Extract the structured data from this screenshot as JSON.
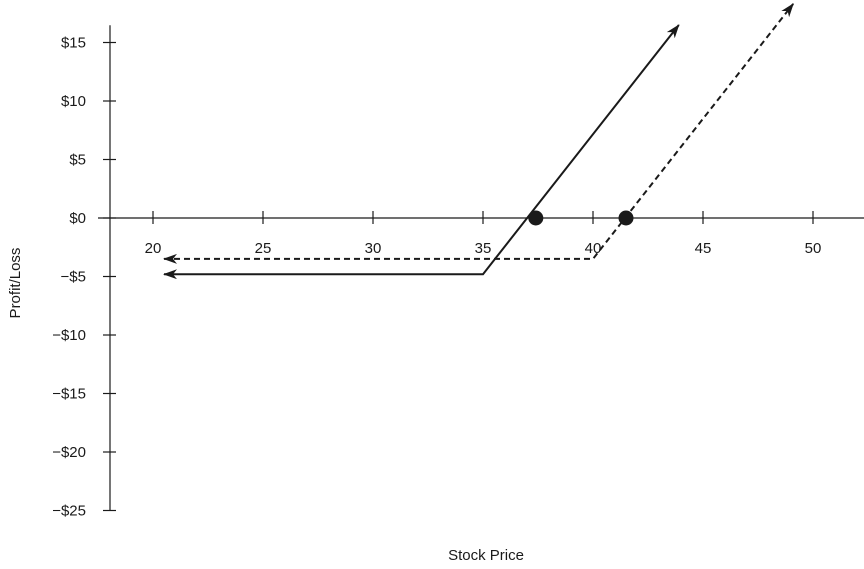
{
  "chart_data": {
    "type": "line",
    "title": "",
    "xlabel": "Stock Price",
    "ylabel": "Profit/Loss",
    "x_ticks": [
      20,
      25,
      30,
      35,
      40,
      45,
      50
    ],
    "x_tick_labels": [
      "20",
      "25",
      "30",
      "35",
      "40",
      "45",
      "50"
    ],
    "y_ticks": [
      15,
      10,
      5,
      0,
      -5,
      -10,
      -15,
      -20,
      -25
    ],
    "y_tick_labels": [
      "$15",
      "$10",
      "$5",
      "$0",
      "−$5",
      "−$10",
      "−$15",
      "−$20",
      "−$25"
    ],
    "xlim": [
      15,
      52.5
    ],
    "ylim": [
      -26,
      17.5
    ],
    "grid": false,
    "legend": "none",
    "series": [
      {
        "style": "solid",
        "x": [
          20.5,
          35,
          43.9
        ],
        "y": [
          -4.8,
          -4.8,
          16.5
        ],
        "arrow_start": true,
        "arrow_end": true,
        "breakeven": {
          "x": 37.4,
          "y": 0
        }
      },
      {
        "style": "dashed",
        "x": [
          20.5,
          40,
          49.1
        ],
        "y": [
          -3.5,
          -3.5,
          18.3
        ],
        "arrow_start": true,
        "arrow_end": true,
        "breakeven": {
          "x": 41.5,
          "y": 0
        }
      }
    ]
  }
}
